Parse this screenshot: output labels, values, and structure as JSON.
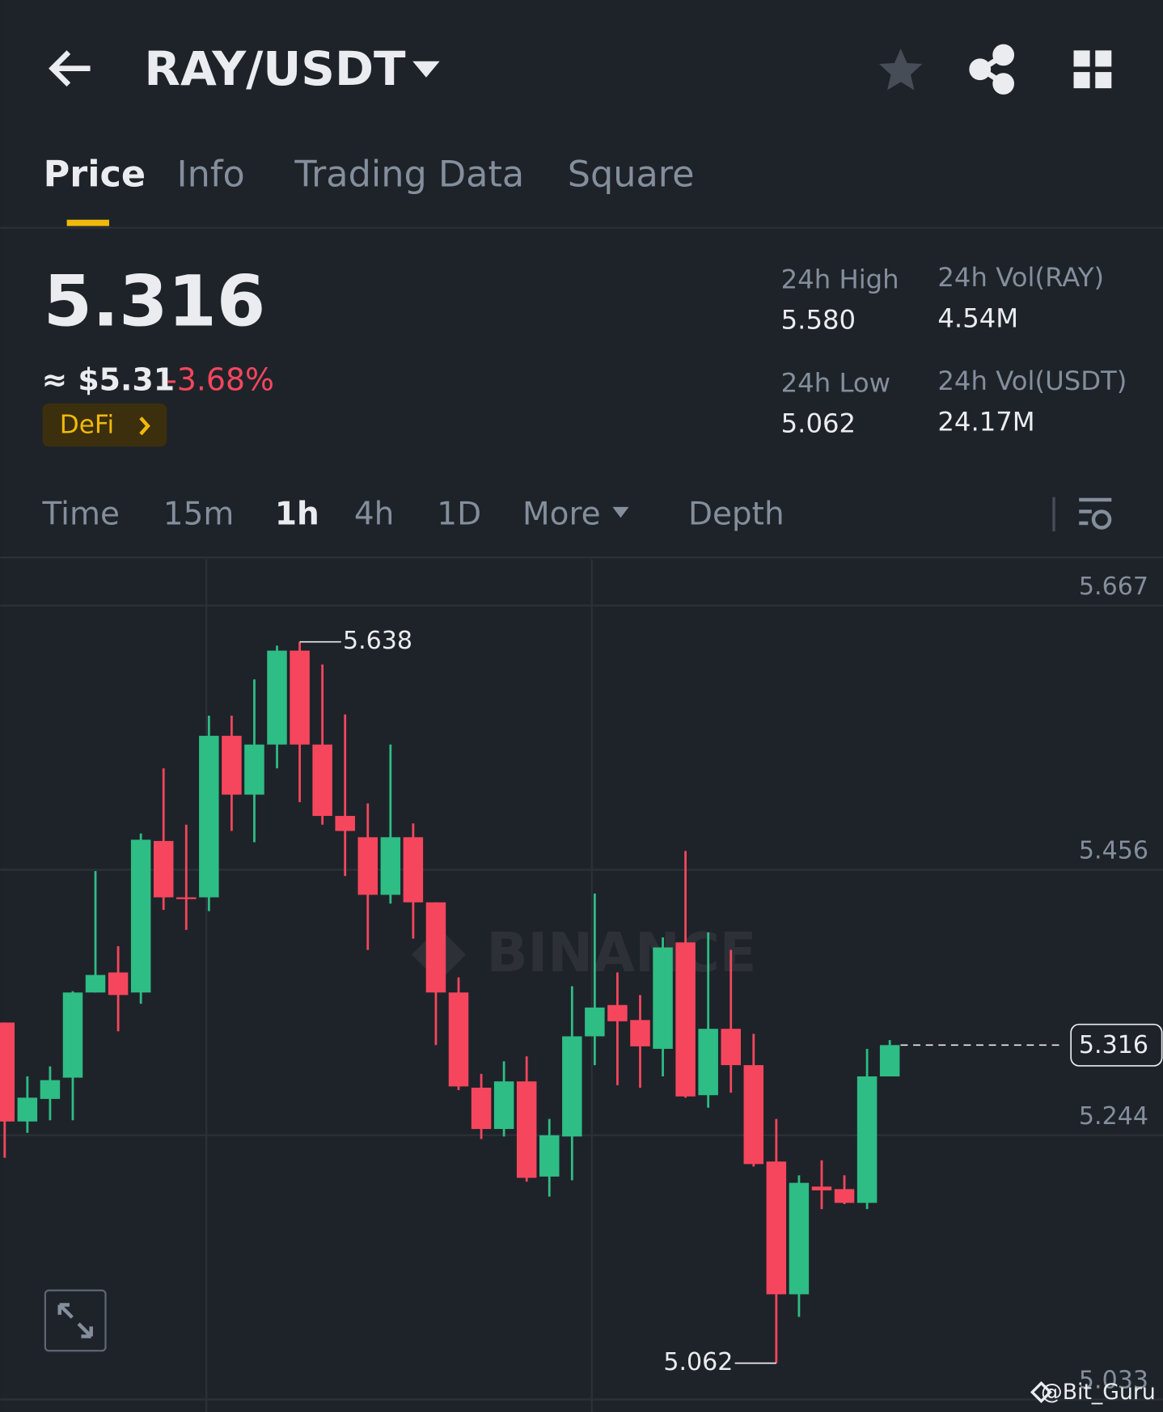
{
  "header": {
    "pair": "RAY/USDT"
  },
  "tabs": [
    "Price",
    "Info",
    "Trading Data",
    "Square"
  ],
  "ticker": {
    "price": "5.316",
    "usd": "≈ $5.31",
    "change": "-3.68%",
    "tag": "DeFi",
    "stats": [
      {
        "label": "24h High",
        "value": "5.580"
      },
      {
        "label": "24h Vol(RAY)",
        "value": "4.54M"
      },
      {
        "label": "24h Low",
        "value": "5.062"
      },
      {
        "label": "24h Vol(USDT)",
        "value": "24.17M"
      }
    ]
  },
  "intervals": [
    "Time",
    "15m",
    "1h",
    "4h",
    "1D",
    "More",
    "Depth"
  ],
  "watermark": "BINANCE",
  "credit": "@Bit_Guru",
  "chart_data": {
    "type": "candlestick",
    "up_color": "#2ebd85",
    "down_color": "#f6465d",
    "ylim": [
      5.023,
      5.704
    ],
    "yticks": [
      5.667,
      5.456,
      5.244,
      5.033
    ],
    "open": [
      5.334,
      5.255,
      5.273,
      5.29,
      5.358,
      5.374,
      5.358,
      5.479,
      5.434,
      5.434,
      5.563,
      5.516,
      5.556,
      5.631,
      5.556,
      5.499,
      5.482,
      5.436,
      5.482,
      5.43,
      5.358,
      5.282,
      5.249,
      5.287,
      5.211,
      5.243,
      5.323,
      5.348,
      5.336,
      5.313,
      5.398,
      5.276,
      5.329,
      5.3,
      5.223,
      5.117,
      5.203,
      5.201,
      5.19,
      5.291
    ],
    "high": [
      5.334,
      5.291,
      5.299,
      5.359,
      5.455,
      5.395,
      5.485,
      5.537,
      5.492,
      5.579,
      5.579,
      5.608,
      5.635,
      5.638,
      5.62,
      5.58,
      5.509,
      5.556,
      5.493,
      5.43,
      5.37,
      5.293,
      5.303,
      5.307,
      5.257,
      5.363,
      5.437,
      5.374,
      5.356,
      5.402,
      5.471,
      5.406,
      5.392,
      5.325,
      5.257,
      5.212,
      5.224,
      5.212,
      5.313,
      5.32
    ],
    "low": [
      5.226,
      5.246,
      5.256,
      5.256,
      5.358,
      5.327,
      5.349,
      5.424,
      5.408,
      5.423,
      5.487,
      5.478,
      5.537,
      5.51,
      5.492,
      5.451,
      5.392,
      5.429,
      5.401,
      5.316,
      5.28,
      5.241,
      5.243,
      5.207,
      5.195,
      5.208,
      5.3,
      5.284,
      5.282,
      5.291,
      5.274,
      5.266,
      5.278,
      5.219,
      5.062,
      5.099,
      5.185,
      5.189,
      5.185,
      5.291
    ],
    "close": [
      5.255,
      5.274,
      5.288,
      5.358,
      5.372,
      5.356,
      5.48,
      5.434,
      5.433,
      5.563,
      5.516,
      5.556,
      5.631,
      5.556,
      5.499,
      5.487,
      5.436,
      5.482,
      5.43,
      5.358,
      5.283,
      5.249,
      5.287,
      5.21,
      5.244,
      5.323,
      5.346,
      5.335,
      5.315,
      5.394,
      5.275,
      5.329,
      5.3,
      5.221,
      5.117,
      5.206,
      5.2,
      5.19,
      5.291,
      5.316
    ],
    "annotations": [
      {
        "index": 13,
        "value": 5.638,
        "label": "5.638",
        "side": "right"
      },
      {
        "index": 34,
        "value": 5.062,
        "label": "5.062",
        "side": "left"
      }
    ],
    "last_price": 5.316
  }
}
